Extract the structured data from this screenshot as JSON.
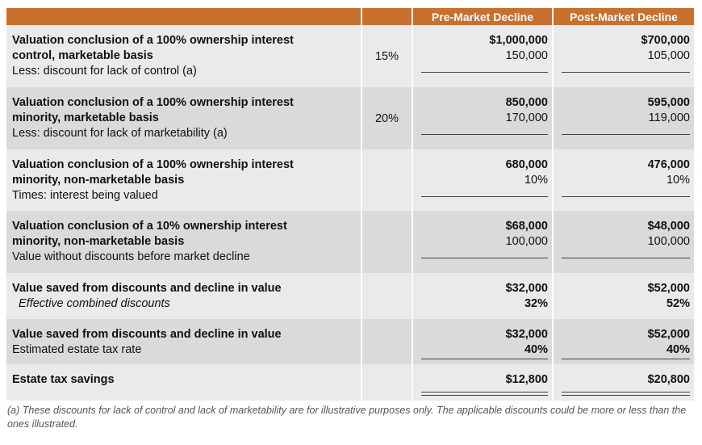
{
  "header": {
    "col1": "",
    "col2": "",
    "col3": "Pre-Market Decline",
    "col4": "Post-Market Decline"
  },
  "rows": [
    {
      "bold": [
        "Valuation conclusion of a 100% ownership interest",
        "control, marketable basis"
      ],
      "sub": "Less: discount for lack of control (a)",
      "pct": "15%",
      "pre": [
        "$1,000,000",
        "150,000"
      ],
      "post": [
        "$700,000",
        "105,000"
      ]
    },
    {
      "bold": [
        "Valuation conclusion of a 100% ownership interest",
        "minority, marketable basis"
      ],
      "sub": "Less: discount for lack of marketability (a)",
      "pct": "20%",
      "pre": [
        "850,000",
        "170,000"
      ],
      "post": [
        "595,000",
        "119,000"
      ]
    },
    {
      "bold": [
        "Valuation conclusion of a 100% ownership interest",
        "minority, non-marketable basis"
      ],
      "sub": "Times: interest being valued",
      "pct": "",
      "pre": [
        "680,000",
        "10%"
      ],
      "post": [
        "476,000",
        "10%"
      ]
    },
    {
      "bold": [
        "Valuation conclusion of a 10% ownership interest",
        "minority, non-marketable basis"
      ],
      "sub": "Value without discounts before market decline",
      "pct": "",
      "pre": [
        "$68,000",
        "100,000"
      ],
      "post": [
        "$48,000",
        "100,000"
      ]
    },
    {
      "bold": [
        "Value saved from discounts and decline in value"
      ],
      "sub": "Effective combined discounts",
      "pct": "",
      "pre": [
        "$32,000",
        "32%"
      ],
      "post": [
        "$52,000",
        "52%"
      ]
    },
    {
      "bold": [
        "Value saved from discounts and decline in value"
      ],
      "sub": "Estimated estate tax rate",
      "pct": "",
      "pre": [
        "$32,000",
        "40%"
      ],
      "post": [
        "$52,000",
        "40%"
      ]
    },
    {
      "bold": [
        "Estate tax savings"
      ],
      "sub": "",
      "pct": "",
      "pre": [
        "$12,800",
        ""
      ],
      "post": [
        "$20,800",
        ""
      ]
    }
  ],
  "footnote": "(a) These discounts for lack of control and lack of marketability are for illustrative purposes only. The applicable discounts could be more or less than the ones illustrated."
}
